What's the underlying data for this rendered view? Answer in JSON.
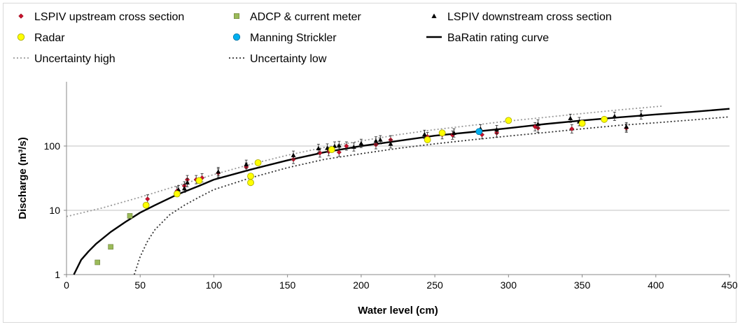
{
  "chart_data": {
    "type": "scatter",
    "xlabel": "Water level (cm)",
    "ylabel": "Discharge (m³/s)",
    "xlim": [
      0,
      450
    ],
    "ylim": [
      1,
      1000
    ],
    "y_scale": "log",
    "x_ticks": [
      "0",
      "50",
      "100",
      "150",
      "200",
      "250",
      "300",
      "350",
      "400",
      "450"
    ],
    "y_ticks": [
      "1",
      "10",
      "100"
    ],
    "grid": "horizontal",
    "legend_position": "top",
    "legend": [
      {
        "key": "lspiv_up",
        "label": "LSPIV upstream cross section",
        "marker": "diamond",
        "color": "#c8102e"
      },
      {
        "key": "adcp",
        "label": "ADCP & current meter",
        "marker": "square",
        "color": "#9bbb59"
      },
      {
        "key": "lspiv_down",
        "label": "LSPIV downstream cross section",
        "marker": "triangle",
        "color": "#000000"
      },
      {
        "key": "radar",
        "label": "Radar",
        "marker": "circle",
        "color": "#ffff00"
      },
      {
        "key": "manning",
        "label": "Manning Strickler",
        "marker": "circle",
        "color": "#00b0f0"
      },
      {
        "key": "baratin",
        "label": "BaRatin rating curve",
        "marker": "line-solid",
        "color": "#000000"
      },
      {
        "key": "unc_high",
        "label": "Uncertainty high",
        "marker": "line-dotted",
        "color": "#999999"
      },
      {
        "key": "unc_low",
        "label": "Uncertainty low",
        "marker": "line-dotted",
        "color": "#333333"
      }
    ],
    "series": [
      {
        "key": "lspiv_up",
        "x": [
          55,
          75,
          80,
          82,
          88,
          92,
          103,
          122,
          154,
          172,
          178,
          185,
          190,
          210,
          220,
          245,
          255,
          262,
          282,
          292,
          318,
          320,
          343,
          380
        ],
        "y": [
          15,
          20,
          24,
          30,
          30,
          32,
          38,
          47,
          62,
          78,
          82,
          80,
          100,
          105,
          125,
          140,
          150,
          148,
          150,
          160,
          200,
          190,
          185,
          190
        ]
      },
      {
        "key": "adcp",
        "x": [
          21,
          30,
          43
        ],
        "y": [
          1.55,
          2.7,
          8.2
        ]
      },
      {
        "key": "lspiv_down",
        "x": [
          76,
          80,
          82,
          103,
          122,
          154,
          171,
          177,
          182,
          185,
          195,
          200,
          210,
          213,
          220,
          243,
          263,
          281,
          292,
          320,
          342,
          348,
          372,
          380,
          390
        ],
        "y": [
          21,
          22,
          27,
          40,
          52,
          72,
          92,
          93,
          100,
          102,
          97,
          110,
          120,
          125,
          108,
          152,
          160,
          185,
          180,
          220,
          270,
          240,
          290,
          200,
          305
        ]
      },
      {
        "key": "radar",
        "x": [
          54,
          75,
          90,
          125,
          125,
          130,
          180,
          245,
          255,
          300,
          350,
          365
        ],
        "y": [
          12,
          18,
          29,
          34,
          27,
          55,
          88,
          125,
          160,
          250,
          225,
          260
        ]
      },
      {
        "key": "manning",
        "x": [
          280
        ],
        "y": [
          168
        ]
      },
      {
        "key": "baratin",
        "x": [
          5,
          10,
          15,
          20,
          30,
          40,
          50,
          60,
          75,
          90,
          100,
          125,
          150,
          175,
          200,
          225,
          250,
          275,
          300,
          325,
          350,
          375,
          400,
          425,
          450
        ],
        "y": [
          1.0,
          1.7,
          2.3,
          3.0,
          4.6,
          6.6,
          9.2,
          12,
          17.5,
          24,
          30,
          43,
          60,
          80,
          100,
          120,
          145,
          165,
          190,
          220,
          250,
          280,
          310,
          340,
          380
        ]
      },
      {
        "key": "unc_high",
        "x": [
          0,
          25,
          50,
          75,
          100,
          125,
          150,
          175,
          200,
          225,
          250,
          275,
          300,
          325,
          350,
          375,
          405
        ],
        "y": [
          8,
          11,
          16,
          24,
          36,
          52,
          72,
          95,
          120,
          150,
          180,
          210,
          245,
          280,
          320,
          365,
          420
        ]
      },
      {
        "key": "unc_low",
        "x": [
          46,
          50,
          55,
          60,
          70,
          80,
          90,
          100,
          125,
          150,
          175,
          200,
          225,
          250,
          275,
          300,
          325,
          350,
          375,
          400,
          425,
          450
        ],
        "y": [
          1.0,
          1.9,
          3.3,
          5.0,
          8.5,
          12,
          16,
          21,
          32,
          46,
          62,
          76,
          92,
          108,
          125,
          143,
          162,
          185,
          210,
          230,
          255,
          285
        ]
      }
    ]
  }
}
